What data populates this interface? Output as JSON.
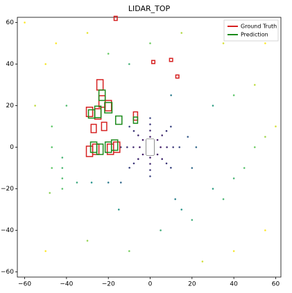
{
  "chart_data": {
    "type": "scatter",
    "title": "LIDAR_TOP",
    "xlim": [
      -63.5,
      62.5
    ],
    "ylim": [
      -62.5,
      62.5
    ],
    "xticks": [
      {
        "value": -60,
        "label": "−60"
      },
      {
        "value": -40,
        "label": "−40"
      },
      {
        "value": -20,
        "label": "−20"
      },
      0,
      20,
      40,
      60
    ],
    "yticks": [
      {
        "value": -60,
        "label": "−60"
      },
      {
        "value": -40,
        "label": "−40"
      },
      {
        "value": -20,
        "label": "−20"
      },
      0,
      20,
      40,
      60
    ],
    "legend": "upper right",
    "points": {
      "x": [
        5,
        3.5,
        0,
        -3.5,
        -5,
        -3.5,
        0,
        3.5,
        8,
        5.7,
        0,
        -5.7,
        -8,
        -5.7,
        0,
        5.7,
        11,
        7.8,
        0,
        -7.8,
        -11,
        -7.8,
        0,
        7.8,
        14,
        9.9,
        0,
        -9.9,
        -14,
        -9.9,
        0,
        9.9,
        -42,
        -42,
        -42,
        -42,
        -35,
        -28,
        -20,
        -14,
        -47,
        -47,
        -47,
        -48,
        12,
        15,
        20,
        30,
        35,
        40,
        45,
        50,
        55,
        60,
        -20,
        -10,
        0,
        10,
        30,
        40,
        50,
        35,
        55,
        -30,
        -50,
        -55,
        -45,
        15,
        25,
        40,
        55,
        -10,
        -30,
        -50,
        20,
        18,
        22,
        -40,
        -60,
        -15,
        5
      ],
      "y": [
        0,
        3.5,
        5,
        3.5,
        0,
        -3.5,
        -5,
        -3.5,
        0,
        5.7,
        8,
        5.7,
        0,
        -5.7,
        -8,
        -5.7,
        0,
        7.8,
        11,
        7.8,
        0,
        -7.8,
        -11,
        -7.8,
        0,
        9.9,
        14,
        9.9,
        0,
        -9.9,
        -14,
        -9.9,
        -5,
        -10,
        -15,
        -20,
        -17,
        -17,
        -17,
        -17,
        10,
        0,
        -10,
        -22,
        -25,
        -30,
        -35,
        -20,
        -25,
        -15,
        -10,
        0,
        5,
        10,
        45,
        40,
        50,
        25,
        20,
        25,
        30,
        50,
        50,
        55,
        40,
        20,
        50,
        55,
        -55,
        -50,
        -40,
        -50,
        -45,
        -50,
        -10,
        5,
        0,
        20,
        60,
        -30,
        -40
      ]
    },
    "series": [
      {
        "name": "Ground Truth",
        "color": "#d62020",
        "boxes": [
          [
            -16.5,
            62,
            1.5,
            2
          ],
          [
            1.5,
            41,
            1.5,
            1.5
          ],
          [
            10,
            42,
            1.5,
            1.5
          ],
          [
            13,
            34,
            1.5,
            1.5
          ],
          [
            -24,
            30,
            3,
            5
          ],
          [
            -23,
            22,
            3,
            5.5
          ],
          [
            -20,
            20,
            3,
            5
          ],
          [
            -29,
            17,
            3,
            4.5
          ],
          [
            -25,
            16,
            3,
            5
          ],
          [
            -27,
            9,
            2.5,
            4
          ],
          [
            -22,
            10,
            2.5,
            4
          ],
          [
            -29,
            -2,
            3,
            5
          ],
          [
            -26,
            -1,
            3,
            5
          ],
          [
            -19,
            -1,
            3,
            5
          ],
          [
            -16,
            0,
            3,
            5
          ],
          [
            -7,
            15,
            2,
            4
          ]
        ]
      },
      {
        "name": "Prediction",
        "color": "#1a8a1a",
        "boxes": [
          [
            -23,
            25,
            3,
            5
          ],
          [
            -20,
            19,
            3.5,
            5
          ],
          [
            -25,
            17,
            3,
            5.5
          ],
          [
            -28,
            16,
            3,
            4
          ],
          [
            -27,
            0,
            3,
            5
          ],
          [
            -24,
            -1,
            3,
            5
          ],
          [
            -20,
            0,
            3,
            5
          ],
          [
            -17,
            1,
            3,
            5
          ],
          [
            -7,
            13,
            2,
            3
          ],
          [
            -15,
            13,
            3,
            4
          ]
        ]
      }
    ]
  }
}
